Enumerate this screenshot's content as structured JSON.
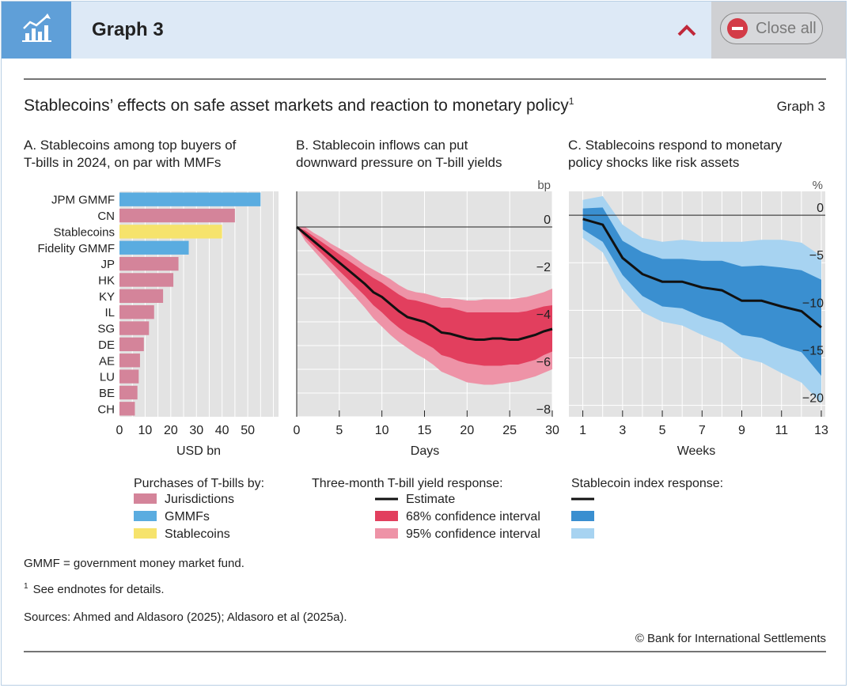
{
  "header": {
    "title": "Graph 3",
    "close_label": "Close all",
    "icon": "chart-trend-icon",
    "collapse_icon": "chevron-up-icon"
  },
  "figure": {
    "title": "Stablecoins’ effects on safe asset markets and reaction to monetary policy",
    "title_sup": "1",
    "graph_label": "Graph 3",
    "notes": {
      "abbrev": "GMMF = government money market fund.",
      "endnote_sup": "1",
      "endnote": "See endnotes for details.",
      "sources": "Sources: Ahmed and Aldasoro (2025); Aldasoro et al (2025a).",
      "copyright": "© Bank for International Settlements"
    }
  },
  "chart_data": [
    {
      "type": "bar",
      "orientation": "horizontal",
      "title_lines": [
        "A. Stablecoins among top buyers of",
        "T-bills in 2024, on par with MMFs"
      ],
      "categories": [
        "JPM GMMF",
        "CN",
        "Stablecoins",
        "Fidelity GMMF",
        "JP",
        "HK",
        "KY",
        "IL",
        "SG",
        "DE",
        "AE",
        "LU",
        "BE",
        "CH"
      ],
      "values": [
        55,
        45,
        40,
        27,
        23,
        21,
        17,
        13.5,
        11.5,
        9.5,
        8,
        7.5,
        7,
        6
      ],
      "groups": [
        "GMMFs",
        "Jurisdictions",
        "Stablecoins",
        "GMMFs",
        "Jurisdictions",
        "Jurisdictions",
        "Jurisdictions",
        "Jurisdictions",
        "Jurisdictions",
        "Jurisdictions",
        "Jurisdictions",
        "Jurisdictions",
        "Jurisdictions",
        "Jurisdictions"
      ],
      "xlabel": "USD bn",
      "xlim": [
        0,
        62
      ],
      "xticks": [
        0,
        10,
        20,
        30,
        40,
        50
      ],
      "grid": true,
      "legend": {
        "title": "Purchases of T-bills by:",
        "items": [
          {
            "label": "Jurisdictions",
            "color": "#d4849a"
          },
          {
            "label": "GMMFs",
            "color": "#5aace0"
          },
          {
            "label": "Stablecoins",
            "color": "#f6e36c"
          }
        ],
        "placement": "bottom"
      }
    },
    {
      "type": "line",
      "title_lines": [
        "B. Stablecoin inflows can put",
        "downward pressure on T-bill yields"
      ],
      "xlabel": "Days",
      "unit": "bp",
      "xlim": [
        0,
        30
      ],
      "ylim": [
        -8,
        1.5
      ],
      "xticks": [
        0,
        5,
        10,
        15,
        20,
        25,
        30
      ],
      "yticks": [
        0,
        -2,
        -4,
        -6,
        -8
      ],
      "x": [
        0,
        1,
        2,
        3,
        4,
        5,
        6,
        7,
        8,
        9,
        10,
        11,
        12,
        13,
        14,
        15,
        16,
        17,
        18,
        19,
        20,
        21,
        22,
        23,
        24,
        25,
        26,
        27,
        28,
        29,
        30
      ],
      "series": [
        {
          "name": "Estimate",
          "values": [
            0,
            -0.3,
            -0.6,
            -0.9,
            -1.2,
            -1.5,
            -1.8,
            -2.1,
            -2.4,
            -2.75,
            -2.95,
            -3.25,
            -3.55,
            -3.8,
            -3.9,
            -4.0,
            -4.2,
            -4.45,
            -4.5,
            -4.6,
            -4.7,
            -4.75,
            -4.75,
            -4.7,
            -4.7,
            -4.75,
            -4.75,
            -4.65,
            -4.55,
            -4.4,
            -4.3
          ]
        }
      ],
      "band68": {
        "upper": [
          0,
          -0.15,
          -0.4,
          -0.65,
          -0.9,
          -1.15,
          -1.4,
          -1.65,
          -1.9,
          -2.15,
          -2.35,
          -2.6,
          -2.85,
          -3.05,
          -3.1,
          -3.2,
          -3.3,
          -3.4,
          -3.4,
          -3.5,
          -3.6,
          -3.6,
          -3.6,
          -3.6,
          -3.6,
          -3.6,
          -3.6,
          -3.55,
          -3.45,
          -3.35,
          -3.3
        ],
        "lower": [
          0,
          -0.45,
          -0.8,
          -1.15,
          -1.5,
          -1.85,
          -2.2,
          -2.55,
          -2.9,
          -3.3,
          -3.6,
          -3.95,
          -4.25,
          -4.5,
          -4.7,
          -4.9,
          -5.1,
          -5.4,
          -5.5,
          -5.65,
          -5.75,
          -5.8,
          -5.85,
          -5.85,
          -5.85,
          -5.8,
          -5.8,
          -5.7,
          -5.6,
          -5.4,
          -5.25
        ]
      },
      "band95": {
        "upper": [
          0,
          0.0,
          -0.25,
          -0.45,
          -0.7,
          -0.9,
          -1.1,
          -1.35,
          -1.6,
          -1.8,
          -2.0,
          -2.2,
          -2.45,
          -2.65,
          -2.75,
          -2.8,
          -2.9,
          -3.0,
          -3.0,
          -3.05,
          -3.1,
          -3.1,
          -3.05,
          -3.05,
          -3.05,
          -3.05,
          -3.0,
          -2.95,
          -2.85,
          -2.75,
          -2.6
        ],
        "lower": [
          0,
          -0.6,
          -1.0,
          -1.4,
          -1.8,
          -2.2,
          -2.6,
          -3.0,
          -3.4,
          -3.85,
          -4.2,
          -4.55,
          -4.85,
          -5.1,
          -5.35,
          -5.55,
          -5.8,
          -6.1,
          -6.25,
          -6.4,
          -6.55,
          -6.6,
          -6.65,
          -6.65,
          -6.6,
          -6.55,
          -6.5,
          -6.4,
          -6.3,
          -6.15,
          -6.0
        ]
      },
      "legend": {
        "title": "Three-month T-bill yield response:",
        "items": [
          {
            "label": "Estimate",
            "kind": "line",
            "color": "#111111"
          },
          {
            "label": "68% confidence interval",
            "kind": "box",
            "color": "#e23f5e"
          },
          {
            "label": "95% confidence interval",
            "kind": "box",
            "color": "#ee93a7"
          }
        ],
        "placement": "bottom"
      }
    },
    {
      "type": "line",
      "title_lines": [
        "C. Stablecoins respond to monetary",
        "policy shocks like risk assets"
      ],
      "xlabel": "Weeks",
      "unit": "%",
      "xlim": [
        0.3,
        13.2
      ],
      "ylim": [
        -21.2,
        2.5
      ],
      "xticks": [
        1,
        3,
        5,
        7,
        9,
        11,
        13
      ],
      "yticks": [
        0,
        -5,
        -10,
        -15,
        -20
      ],
      "x": [
        1,
        2,
        3,
        4,
        5,
        6,
        7,
        8,
        9,
        10,
        11,
        12,
        13
      ],
      "series": [
        {
          "name": "",
          "values": [
            -0.4,
            -1.0,
            -4.5,
            -6.2,
            -7.0,
            -7.0,
            -7.6,
            -7.9,
            -9.0,
            -9.0,
            -9.6,
            -10.1,
            -11.8
          ]
        }
      ],
      "band68": {
        "upper": [
          0.7,
          0.8,
          -2.7,
          -3.9,
          -4.6,
          -4.6,
          -4.8,
          -4.8,
          -5.4,
          -5.3,
          -5.5,
          -5.8,
          -6.8
        ],
        "lower": [
          -1.5,
          -2.8,
          -6.3,
          -8.5,
          -9.6,
          -9.8,
          -10.7,
          -11.3,
          -12.6,
          -12.9,
          -13.8,
          -14.4,
          -16.9
        ]
      },
      "band95": {
        "upper": [
          1.6,
          2.0,
          -1.0,
          -2.4,
          -2.8,
          -2.6,
          -2.8,
          -2.8,
          -2.8,
          -2.6,
          -2.6,
          -2.9,
          -4.3
        ],
        "lower": [
          -2.4,
          -3.9,
          -7.8,
          -10.2,
          -11.2,
          -11.6,
          -12.6,
          -13.4,
          -15.0,
          -15.5,
          -16.6,
          -17.6,
          -19.8
        ]
      },
      "legend": {
        "title": "Stablecoin index response:",
        "items": [
          {
            "label": "",
            "kind": "line",
            "color": "#111111"
          },
          {
            "label": "",
            "kind": "box",
            "color": "#3a8fd0"
          },
          {
            "label": "",
            "kind": "box",
            "color": "#a7d3f1"
          }
        ],
        "placement": "bottom"
      }
    }
  ]
}
